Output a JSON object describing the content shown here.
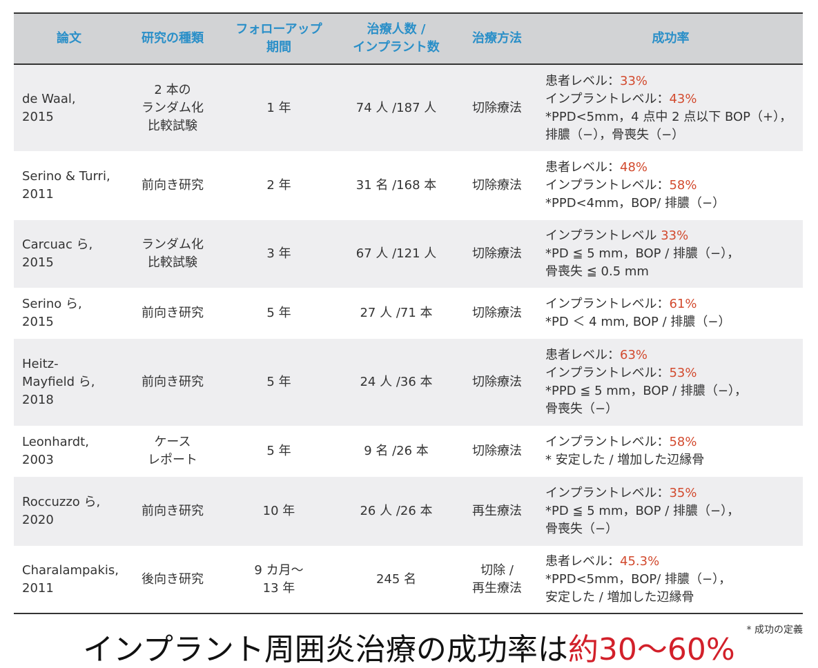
{
  "headers": [
    "論文",
    "研究の種類",
    "フォローアップ\n期間",
    "治療人数 /\nインプラント数",
    "治療方法",
    "成功率"
  ],
  "rows": [
    {
      "paper": "de Waal,\n2015",
      "type": "2 本の\nランダム化\n比較試験",
      "followup": "1 年",
      "count": "74 人 /187 人",
      "method": "切除療法",
      "rate": [
        {
          "label": "患者レベル：",
          "pct": "33%"
        },
        {
          "label": "インプラントレベル：",
          "pct": "43%"
        },
        {
          "label": "*PPD<5mm，4 点中 2 点以下 BOP（+），排膿（−），骨喪失（−）",
          "pct": ""
        }
      ]
    },
    {
      "paper": "Serino & Turri,\n2011",
      "type": "前向き研究",
      "followup": "2 年",
      "count": "31 名 /168 本",
      "method": "切除療法",
      "rate": [
        {
          "label": "患者レベル：",
          "pct": "48%"
        },
        {
          "label": "インプラントレベル：",
          "pct": "58%"
        },
        {
          "label": "*PPD<4mm，BOP/ 排膿（−）",
          "pct": ""
        }
      ]
    },
    {
      "paper": "Carcuac ら,\n2015",
      "type": "ランダム化\n比較試験",
      "followup": "3 年",
      "count": "67 人 /121 人",
      "method": "切除療法",
      "rate": [
        {
          "label": "インプラントレベル ",
          "pct": "33%"
        },
        {
          "label": "*PD ≦ 5 mm，BOP / 排膿（−），",
          "pct": ""
        },
        {
          "label": "骨喪失 ≦ 0.5 mm",
          "pct": ""
        }
      ]
    },
    {
      "paper": "Serino ら,\n2015",
      "type": "前向き研究",
      "followup": "5 年",
      "count": "27 人 /71 本",
      "method": "切除療法",
      "rate": [
        {
          "label": "インプラントレベル：",
          "pct": "61%"
        },
        {
          "label": "*PD ＜ 4 mm, BOP / 排膿（−）",
          "pct": ""
        }
      ]
    },
    {
      "paper": "Heitz-\nMayfield ら,\n2018",
      "type": "前向き研究",
      "followup": "5 年",
      "count": "24 人 /36 本",
      "method": "切除療法",
      "rate": [
        {
          "label": "患者レベル：",
          "pct": "63%"
        },
        {
          "label": "インプラントレベル：",
          "pct": "53%"
        },
        {
          "label": "*PPD ≦ 5 mm，BOP / 排膿（−），",
          "pct": ""
        },
        {
          "label": "骨喪失（−）",
          "pct": ""
        }
      ]
    },
    {
      "paper": "Leonhardt,\n2003",
      "type": "ケース\nレポート",
      "followup": "5 年",
      "count": "9 名 /26 本",
      "method": "切除療法",
      "rate": [
        {
          "label": "インプラントレベル：",
          "pct": "58%"
        },
        {
          "label": "* 安定した / 増加した辺縁骨",
          "pct": ""
        }
      ]
    },
    {
      "paper": "Roccuzzo ら,\n2020",
      "type": "前向き研究",
      "followup": "10 年",
      "count": "26 人 /26 本",
      "method": "再生療法",
      "rate": [
        {
          "label": "インプラントレベル：",
          "pct": "35%"
        },
        {
          "label": "*PD ≦ 5 mm，BOP / 排膿（−），",
          "pct": ""
        },
        {
          "label": "骨喪失（−）",
          "pct": ""
        }
      ]
    },
    {
      "paper": "Charalampakis,\n2011",
      "type": "後向き研究",
      "followup": "9 カ月〜\n13 年",
      "count": "245 名",
      "method": "切除 /\n再生療法",
      "rate": [
        {
          "label": "患者レベル：",
          "pct": "45.3%"
        },
        {
          "label": "*PPD<5mm，BOP/ 排膿（−），",
          "pct": ""
        },
        {
          "label": "安定した / 増加した辺縁骨",
          "pct": ""
        }
      ]
    }
  ],
  "footnote": "* 成功の定義",
  "conclusion": {
    "prefix": "インプラント周囲炎治療の成功率は",
    "highlight": "約30〜60%"
  },
  "colors": {
    "header_text": "#2a8fc8",
    "percent": "#d24a2e",
    "highlight": "#d2202a",
    "header_bg": "#d2d3d5",
    "row_shade": "#eeeef0"
  }
}
